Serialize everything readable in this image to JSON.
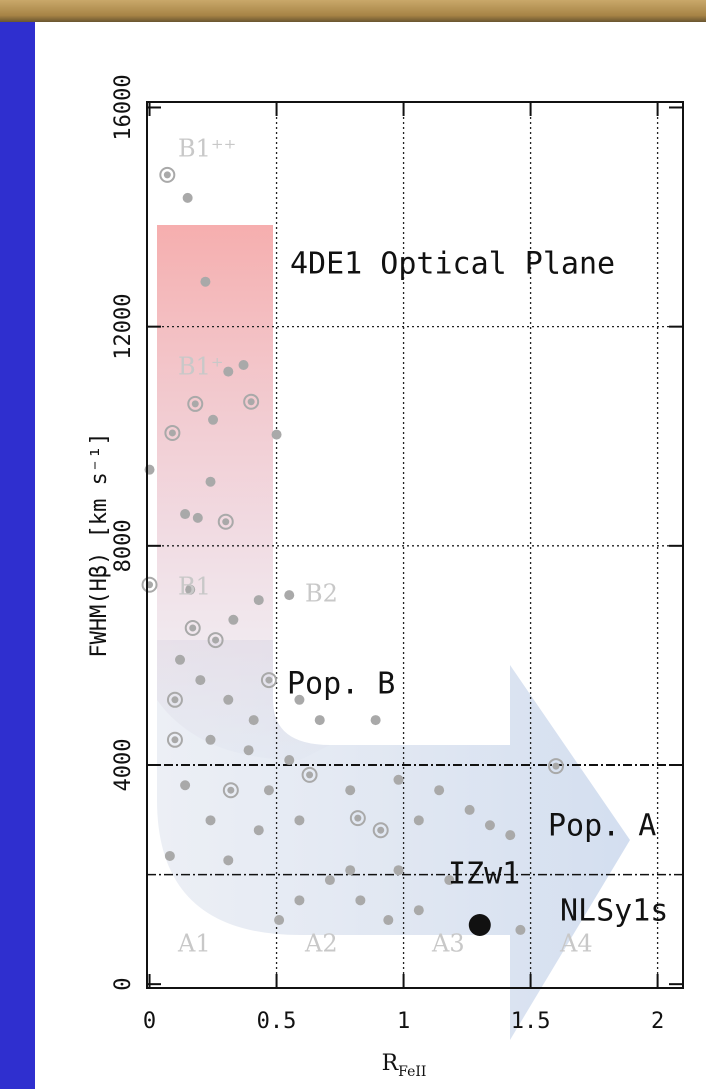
{
  "chart_data": {
    "type": "scatter",
    "x_label": {
      "main": "R",
      "sub": "FeII"
    },
    "y_label": "FWHM(Hβ) [km s⁻¹]",
    "xlim": [
      -0.01,
      2.1
    ],
    "ylim": [
      -70,
      16100
    ],
    "xticks": [
      0,
      0.5,
      1,
      1.5,
      2
    ],
    "yticks": [
      0,
      4000,
      8000,
      12000,
      16000
    ],
    "grid_x": [
      0.5,
      1,
      1.5,
      2
    ],
    "grid_y": [
      8000,
      12000
    ],
    "boundary_lines": [
      2000,
      4000
    ],
    "annotations": [
      "4DE1 Optical Plane",
      "Pop. B",
      "Pop. A",
      "IZw1",
      "NLSy1s"
    ],
    "region_labels": [
      "B1⁺⁺",
      "B1⁺",
      "B1",
      "B2",
      "A1",
      "A2",
      "A3",
      "A4"
    ],
    "series": [
      {
        "color": "#a9a9a9",
        "marker": "dot",
        "x": [
          0.15,
          0.22,
          0.31,
          0.37,
          0.25,
          0.24,
          0.19,
          0.14,
          0,
          0.5,
          0.16,
          0.33,
          0.43,
          0.55,
          0.12,
          0.2,
          0.31,
          0.41,
          0.59,
          0.67,
          0.89,
          0.24,
          0.39,
          0.55,
          0.14,
          0.47,
          0.79,
          0.98,
          1.14,
          0.24,
          0.31,
          0.43,
          0.59,
          1.06,
          1.26,
          1.34,
          1.42,
          0.08,
          0.71,
          0.79,
          0.98,
          1.18,
          0.59,
          0.83,
          1.06,
          1.46,
          0.51,
          0.94
        ],
        "values": [
          14350,
          12820,
          11180,
          11300,
          10300,
          9170,
          8510,
          8580,
          9390,
          10030,
          7200,
          6650,
          7010,
          7100,
          5920,
          5550,
          5190,
          4820,
          5190,
          4820,
          4820,
          4460,
          4270,
          4090,
          3630,
          3540,
          3540,
          3730,
          3540,
          2990,
          2260,
          2810,
          2990,
          2990,
          3180,
          2900,
          2720,
          2340,
          1900,
          2080,
          2080,
          1900,
          1530,
          1530,
          1350,
          990,
          1170,
          1170
        ]
      },
      {
        "color": "#a9a9a9",
        "marker": "ring",
        "x": [
          0.07,
          0.18,
          0.09,
          0.4,
          0.3,
          0,
          0.17,
          0.26,
          0.1,
          0.47,
          0.1,
          0.32,
          0.63,
          1.6,
          0.82,
          0.91
        ],
        "values": [
          14770,
          10590,
          10060,
          10630,
          8440,
          7290,
          6500,
          6280,
          5190,
          5550,
          4460,
          3540,
          3820,
          3980,
          3030,
          2810
        ]
      },
      {
        "color": "#111111",
        "marker": "big",
        "x": [
          1.3
        ],
        "values": [
          1080
        ]
      }
    ]
  }
}
